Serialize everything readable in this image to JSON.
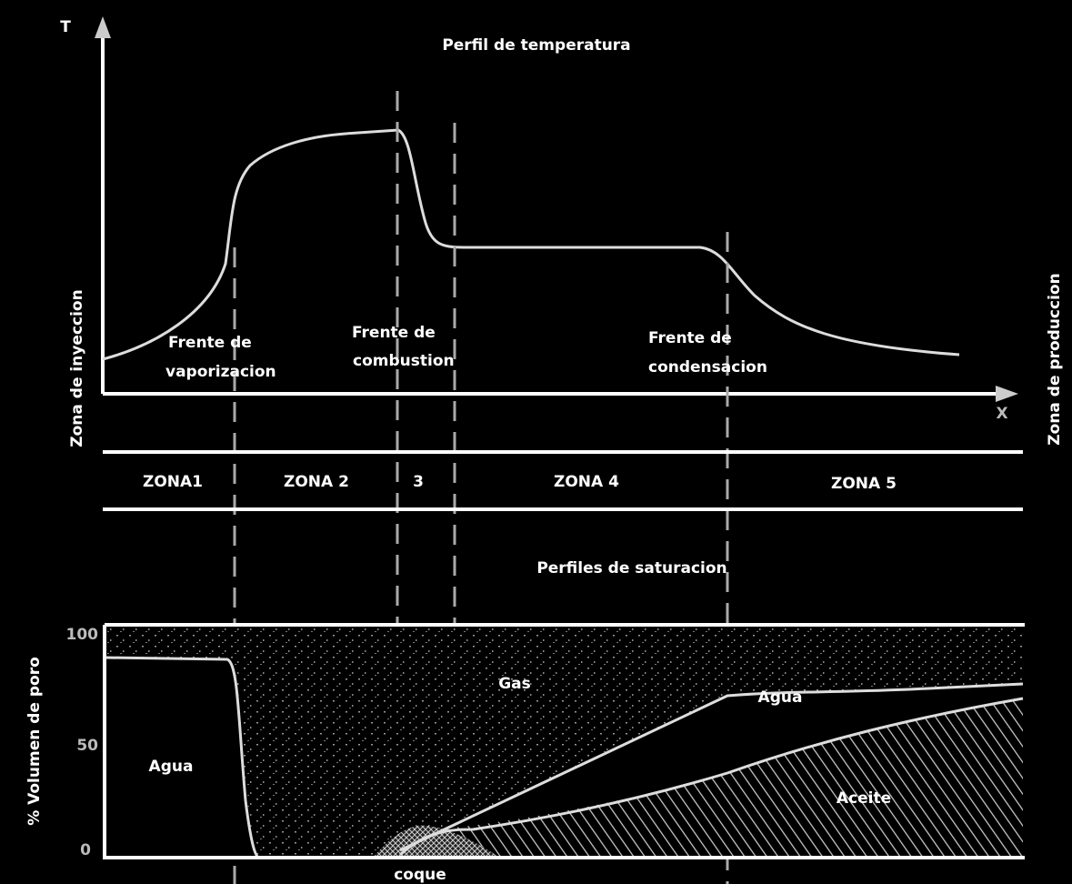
{
  "temperature": {
    "title": "Perfil de temperatura",
    "y_axis": "T",
    "x_axis": "X",
    "left_label": "Zona de inyeccion",
    "right_label": "Zona de produccion",
    "fronts": [
      {
        "lines": [
          "Frente de",
          "vaporizacion"
        ]
      },
      {
        "lines": [
          "Frente de",
          "combustion"
        ]
      },
      {
        "lines": [
          "Frente de",
          "condensacion"
        ]
      }
    ]
  },
  "zones": [
    "ZONA1",
    "ZONA 2",
    "3",
    "ZONA 4",
    "ZONA 5"
  ],
  "saturation": {
    "title": "Perfiles de saturacion",
    "y_axis": "% Volumen de poro",
    "yticks": [
      100,
      50,
      0
    ],
    "labels": {
      "gas": "Gas",
      "water_right": "Agua",
      "water_left": "Agua",
      "oil": "Aceite",
      "coke": "coque"
    }
  }
}
